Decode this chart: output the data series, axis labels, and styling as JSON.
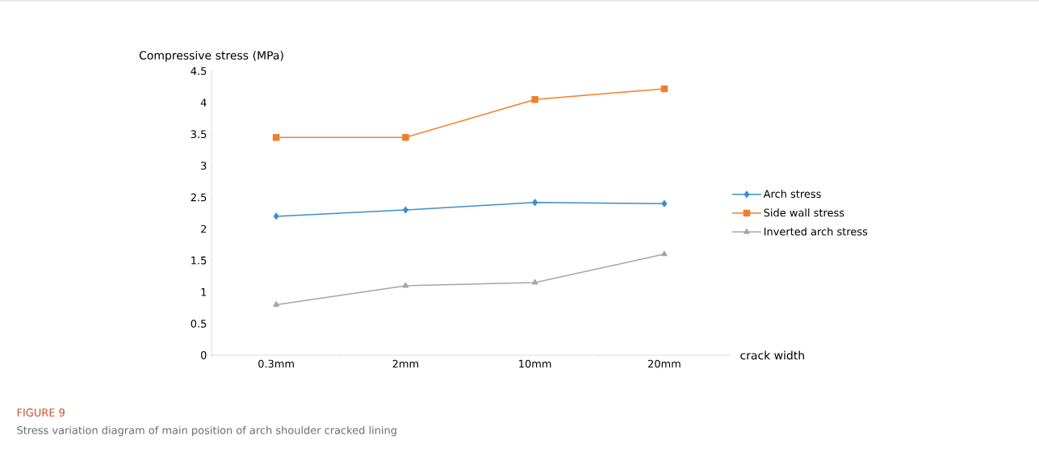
{
  "chart_data": {
    "type": "line",
    "ylabel": "Compressive stress (MPa)",
    "xlabel": "crack width",
    "categories": [
      "0.3mm",
      "2mm",
      "10mm",
      "20mm"
    ],
    "series": [
      {
        "name": "Arch stress",
        "color": "#3c8fc9",
        "marker": "diamond",
        "values": [
          2.2,
          2.3,
          2.42,
          2.4
        ]
      },
      {
        "name": "Side wall stress",
        "color": "#f07f2c",
        "marker": "square",
        "values": [
          3.45,
          3.45,
          4.05,
          4.22
        ]
      },
      {
        "name": "Inverted arch stress",
        "color": "#a6a6a6",
        "marker": "triangle",
        "values": [
          0.8,
          1.1,
          1.15,
          1.6
        ]
      }
    ],
    "ylim": [
      0,
      4.5
    ],
    "yticks": [
      0,
      0.5,
      1,
      1.5,
      2,
      2.5,
      3,
      3.5,
      4,
      4.5
    ],
    "grid": false,
    "legend": "right",
    "annotations": [
      "FIGURE 9",
      "Stress variation diagram of main position of arch shoulder cracked lining"
    ]
  }
}
